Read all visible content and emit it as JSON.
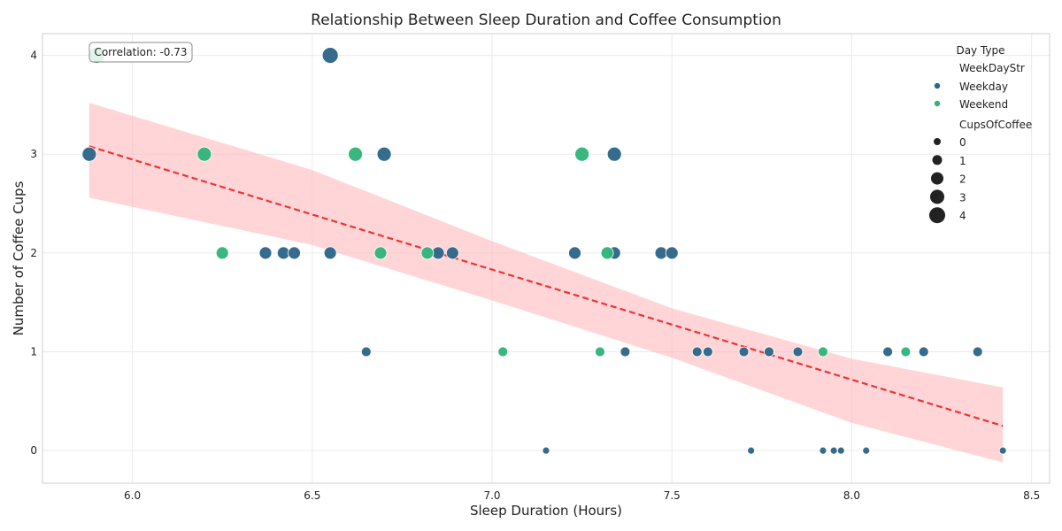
{
  "chart_data": {
    "type": "scatter",
    "title": "Relationship Between Sleep Duration and Coffee Consumption",
    "xlabel": "Sleep Duration (Hours)",
    "ylabel": "Number of Coffee Cups",
    "xlim": [
      5.75,
      8.55
    ],
    "ylim": [
      -0.33,
      4.22
    ],
    "xticks": [
      "6.0",
      "6.5",
      "7.0",
      "7.5",
      "8.0",
      "8.5"
    ],
    "yticks": [
      "0",
      "1",
      "2",
      "3",
      "4"
    ],
    "grid": true,
    "annotation": "Correlation: -0.73",
    "colors": {
      "Weekday": "#2d6688",
      "Weekend": "#30b47a",
      "trend": "#ee3333",
      "band": "#ffb3b8"
    },
    "legend": {
      "placement": "top-right",
      "title": "Day Type",
      "hue_title": "WeekDayStr",
      "hue_entries": [
        "Weekday",
        "Weekend"
      ],
      "size_title": "CupsOfCoffee",
      "size_entries": [
        "0",
        "1",
        "2",
        "3",
        "4"
      ]
    },
    "trendline": {
      "x": [
        5.88,
        8.42
      ],
      "y": [
        3.08,
        0.25
      ]
    },
    "confidence_band": {
      "x": [
        5.88,
        6.5,
        7.0,
        7.5,
        8.0,
        8.42
      ],
      "lower": [
        2.56,
        2.08,
        1.52,
        0.94,
        0.28,
        -0.12
      ],
      "upper": [
        3.52,
        2.84,
        2.12,
        1.44,
        0.93,
        0.64
      ]
    },
    "series": [
      {
        "name": "Weekday",
        "x": [
          5.88,
          6.55,
          6.7,
          7.34,
          6.37,
          6.42,
          6.45,
          6.55,
          6.85,
          6.89,
          7.23,
          7.34,
          7.47,
          7.5,
          6.65,
          7.37,
          7.57,
          7.6,
          7.7,
          7.77,
          7.85,
          8.1,
          8.2,
          8.35,
          7.15,
          7.72,
          7.92,
          7.95,
          7.97,
          8.04,
          8.42
        ],
        "y": [
          3,
          4,
          3,
          3,
          2,
          2,
          2,
          2,
          2,
          2,
          2,
          2,
          2,
          2,
          1,
          1,
          1,
          1,
          1,
          1,
          1,
          1,
          1,
          1,
          0,
          0,
          0,
          0,
          0,
          0,
          0
        ]
      },
      {
        "name": "Weekend",
        "x": [
          5.9,
          6.2,
          6.62,
          7.25,
          6.25,
          6.69,
          6.82,
          7.32,
          7.03,
          7.3,
          7.92,
          8.15
        ],
        "y": [
          4,
          3,
          3,
          3,
          2,
          2,
          2,
          2,
          1,
          1,
          1,
          1
        ]
      }
    ]
  }
}
